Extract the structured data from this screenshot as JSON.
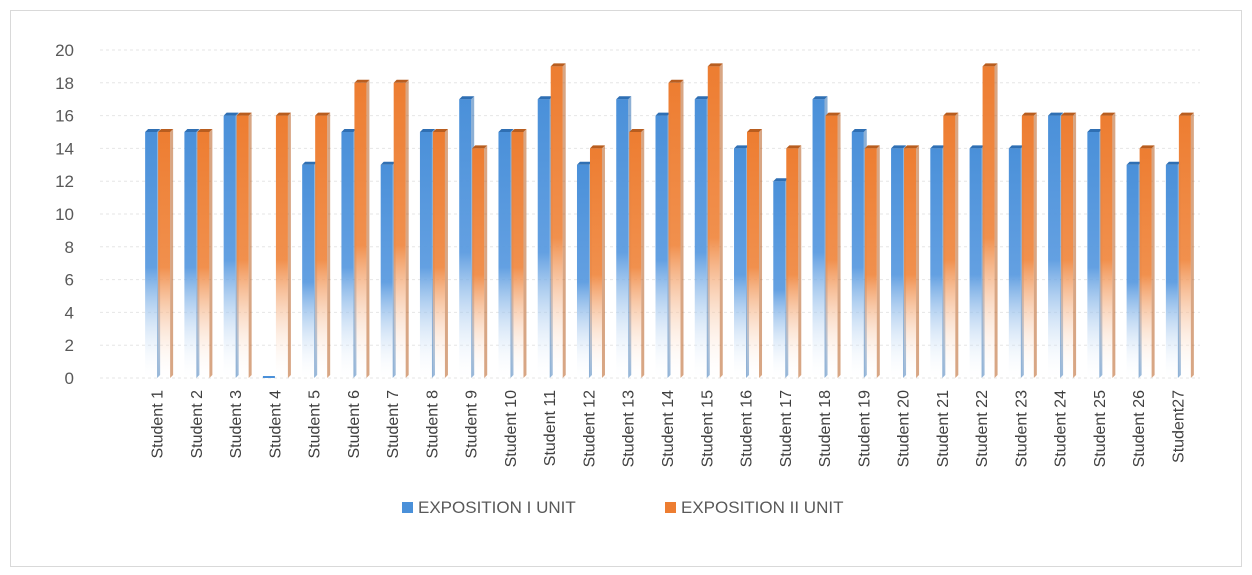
{
  "chart_data": {
    "type": "bar",
    "categories": [
      "Student 1",
      "Student 2",
      "Student 3",
      "Student 4",
      "Student 5",
      "Student 6",
      "Student 7",
      "Student 8",
      "Student 9",
      "Student 10",
      "Student 11",
      "Student 12",
      "Student 13",
      "Student 14",
      "Student 15",
      "Student 16",
      "Student 17",
      "Student 18",
      "Student 19",
      "Student 20",
      "Student 21",
      "Student 22",
      "Student 23",
      "Student 24",
      "Student 25",
      "Student 26",
      "Student27"
    ],
    "series": [
      {
        "name": "EXPOSITION I UNIT",
        "color": "#4a90d9",
        "values": [
          15,
          15,
          16,
          0,
          13,
          15,
          13,
          15,
          17,
          15,
          17,
          13,
          17,
          16,
          17,
          14,
          12,
          17,
          15,
          14,
          14,
          14,
          14,
          16,
          15,
          13,
          13
        ]
      },
      {
        "name": "EXPOSITION II UNIT",
        "color": "#ed7d31",
        "values": [
          15,
          15,
          16,
          16,
          16,
          18,
          18,
          15,
          14,
          15,
          19,
          14,
          15,
          18,
          19,
          15,
          14,
          16,
          14,
          14,
          16,
          19,
          16,
          16,
          16,
          14,
          16
        ]
      }
    ],
    "yticks": [
      "0",
      "2",
      "4",
      "6",
      "8",
      "10",
      "12",
      "14",
      "16",
      "18",
      "20"
    ],
    "ylim": [
      0,
      20
    ],
    "grid": true,
    "legend": "bottom-center"
  }
}
